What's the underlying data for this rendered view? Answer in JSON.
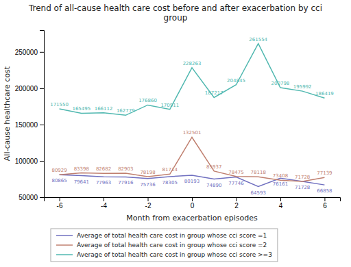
{
  "chart_data": {
    "type": "line",
    "title": "Trend of all-cause health care cost before and after exacerbation by cci\ngroup",
    "x_label": "Month from exacerbation episodes",
    "y_label": "All-cause healthcare cost",
    "x": [
      -6,
      -5,
      -4,
      -3,
      -2,
      -1,
      0,
      1,
      2,
      3,
      4,
      5,
      6
    ],
    "series": [
      {
        "name": "Average of total health care cost in group whose cci score =1",
        "color": "#7070c0",
        "values": [
          80865,
          79641,
          77963,
          77916,
          75736,
          78305,
          80193,
          74890,
          77746,
          64593,
          76161,
          71728,
          66858
        ]
      },
      {
        "name": "Average of total health care cost in group whose cci score =2",
        "color": "#c08070",
        "values": [
          80929,
          83398,
          82682,
          82903,
          78198,
          81714,
          132501,
          85937,
          78475,
          78118,
          73408,
          71728,
          77139
        ]
      },
      {
        "name": "Average of total health care cost in group whose cci score >=3",
        "color": "#50b8b0",
        "values": [
          171550,
          165495,
          166112,
          162779,
          176860,
          170911,
          228263,
          187217,
          204845,
          261554,
          200798,
          195992,
          186419
        ]
      }
    ],
    "xlim": [
      -6.7,
      6.7
    ],
    "xticks": [
      -6,
      -4,
      -2,
      0,
      2,
      4,
      6
    ],
    "ylim": [
      50000,
      280000
    ],
    "yticks": [
      50000,
      100000,
      150000,
      200000,
      250000
    ],
    "data_labels": true,
    "grid": false,
    "legend": "bottom"
  }
}
